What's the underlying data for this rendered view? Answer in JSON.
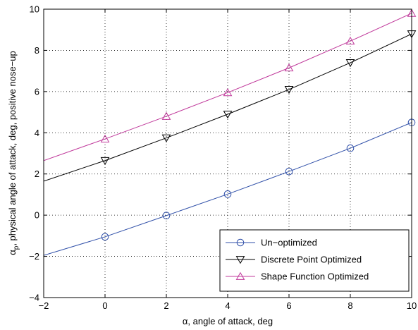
{
  "chart_data": {
    "type": "line",
    "xlabel": "α, angle of attack, deg",
    "ylabel_main": "α",
    "ylabel_sub": "p",
    "ylabel_rest": ", physical angle of attack, deg, positive nose−up",
    "xlim": [
      -2,
      10
    ],
    "ylim": [
      -4,
      10
    ],
    "xticks": [
      -2,
      0,
      2,
      4,
      6,
      8,
      10
    ],
    "yticks": [
      -4,
      -2,
      0,
      2,
      4,
      6,
      8,
      10
    ],
    "xtick_labels": [
      "−2",
      "0",
      "2",
      "4",
      "6",
      "8",
      "10"
    ],
    "ytick_labels": [
      "−4",
      "−2",
      "0",
      "2",
      "4",
      "6",
      "8",
      "10"
    ],
    "grid": true,
    "legend_position": "bottom-right",
    "series": [
      {
        "name": "Un−optimized",
        "color": "#2f4fa8",
        "marker": "circle",
        "line_x": [
          -2,
          10
        ],
        "line_y": [
          -1.95,
          4.5
        ],
        "marker_x": [
          0,
          2,
          4,
          6,
          8,
          10
        ],
        "marker_y": [
          -1.05,
          -0.02,
          1.02,
          2.12,
          3.25,
          4.5
        ]
      },
      {
        "name": "Discrete Point Optimized",
        "color": "#000000",
        "marker": "triangle-down",
        "line_x": [
          -2,
          10
        ],
        "line_y": [
          1.65,
          8.85
        ],
        "marker_x": [
          0,
          2,
          4,
          6,
          8,
          10
        ],
        "marker_y": [
          2.65,
          3.75,
          4.9,
          6.1,
          7.4,
          8.8
        ]
      },
      {
        "name": "Shape Function Optimized",
        "color": "#c0399b",
        "marker": "triangle-up",
        "line_x": [
          -2,
          10
        ],
        "line_y": [
          2.65,
          9.85
        ],
        "marker_x": [
          0,
          2,
          4,
          6,
          8,
          10
        ],
        "marker_y": [
          3.7,
          4.8,
          5.95,
          7.15,
          8.45,
          9.8
        ]
      }
    ]
  }
}
